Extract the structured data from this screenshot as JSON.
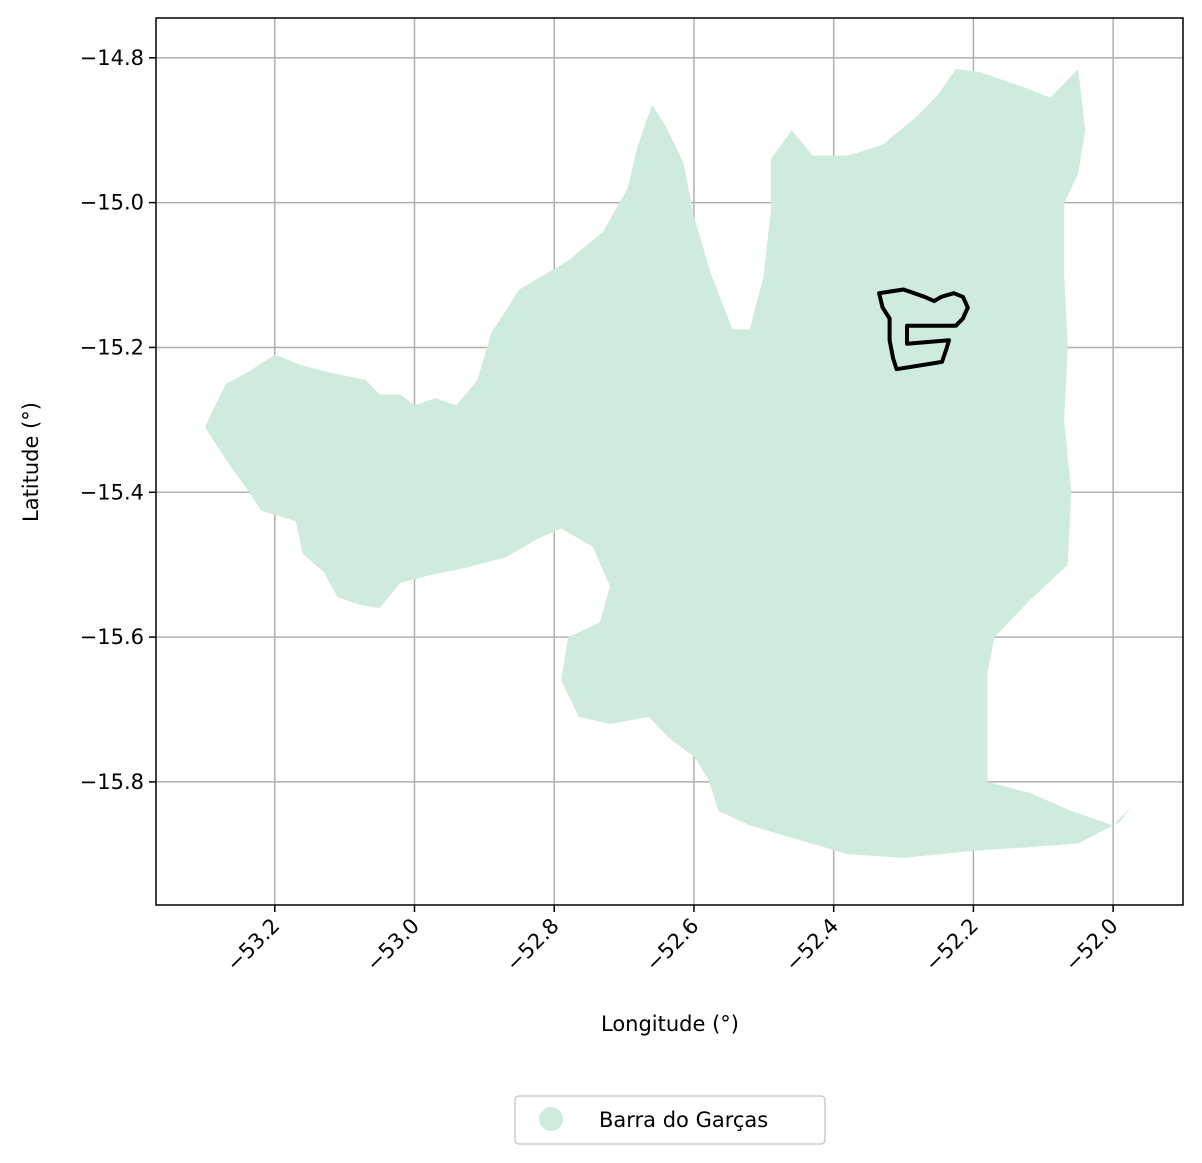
{
  "chart_data": {
    "type": "map",
    "xlabel": "Longitude (°)",
    "ylabel": "Latitude (°)",
    "xlim": [
      -53.37,
      -51.9
    ],
    "ylim": [
      -15.97,
      -14.745
    ],
    "xticks": [
      -53.2,
      -53.0,
      -52.8,
      -52.6,
      -52.4,
      -52.2,
      -52.0
    ],
    "yticks": [
      -14.8,
      -15.0,
      -15.2,
      -15.4,
      -15.6,
      -15.8
    ],
    "xtick_labels": [
      "−53.2",
      "−53.0",
      "−52.8",
      "−52.6",
      "−52.4",
      "−52.2",
      "−52.0"
    ],
    "ytick_labels": [
      "−14.8",
      "−15.0",
      "−15.2",
      "−15.4",
      "−15.6",
      "−15.8"
    ],
    "grid": true,
    "legend_position": "bottom-center",
    "legend": [
      {
        "label": "Barra do Garças",
        "color": "#cfebde"
      }
    ],
    "region_fill": "#cfebde",
    "outline_color": "#000000",
    "municipality": {
      "name": "Barra do Garças",
      "boundary": [
        [
          -53.3,
          -15.31
        ],
        [
          -53.29,
          -15.29
        ],
        [
          -53.27,
          -15.25
        ],
        [
          -53.24,
          -15.235
        ],
        [
          -53.2,
          -15.21
        ],
        [
          -53.16,
          -15.225
        ],
        [
          -53.12,
          -15.235
        ],
        [
          -53.07,
          -15.245
        ],
        [
          -53.05,
          -15.265
        ],
        [
          -53.02,
          -15.265
        ],
        [
          -53.0,
          -15.28
        ],
        [
          -52.97,
          -15.27
        ],
        [
          -52.94,
          -15.28
        ],
        [
          -52.91,
          -15.245
        ],
        [
          -52.89,
          -15.18
        ],
        [
          -52.85,
          -15.12
        ],
        [
          -52.78,
          -15.08
        ],
        [
          -52.73,
          -15.04
        ],
        [
          -52.695,
          -14.98
        ],
        [
          -52.68,
          -14.92
        ],
        [
          -52.66,
          -14.865
        ],
        [
          -52.64,
          -14.895
        ],
        [
          -52.615,
          -14.945
        ],
        [
          -52.6,
          -15.02
        ],
        [
          -52.575,
          -15.1
        ],
        [
          -52.545,
          -15.175
        ],
        [
          -52.52,
          -15.175
        ],
        [
          -52.5,
          -15.1
        ],
        [
          -52.49,
          -15.01
        ],
        [
          -52.49,
          -14.94
        ],
        [
          -52.46,
          -14.9
        ],
        [
          -52.43,
          -14.935
        ],
        [
          -52.38,
          -14.935
        ],
        [
          -52.33,
          -14.92
        ],
        [
          -52.28,
          -14.88
        ],
        [
          -52.25,
          -14.85
        ],
        [
          -52.225,
          -14.815
        ],
        [
          -52.19,
          -14.82
        ],
        [
          -52.13,
          -14.84
        ],
        [
          -52.09,
          -14.855
        ],
        [
          -52.05,
          -14.815
        ],
        [
          -52.04,
          -14.9
        ],
        [
          -52.05,
          -14.96
        ],
        [
          -52.07,
          -15.0
        ],
        [
          -52.07,
          -15.1
        ],
        [
          -52.065,
          -15.2
        ],
        [
          -52.07,
          -15.3
        ],
        [
          -52.06,
          -15.4
        ],
        [
          -52.065,
          -15.5
        ],
        [
          -52.12,
          -15.55
        ],
        [
          -52.17,
          -15.6
        ],
        [
          -52.18,
          -15.65
        ],
        [
          -52.18,
          -15.72
        ],
        [
          -52.18,
          -15.8
        ],
        [
          -52.12,
          -15.815
        ],
        [
          -52.06,
          -15.84
        ],
        [
          -52.0,
          -15.86
        ],
        [
          -51.975,
          -15.835
        ],
        [
          -51.99,
          -15.855
        ],
        [
          -52.05,
          -15.885
        ],
        [
          -52.12,
          -15.89
        ],
        [
          -52.2,
          -15.895
        ],
        [
          -52.3,
          -15.905
        ],
        [
          -52.38,
          -15.9
        ],
        [
          -52.45,
          -15.88
        ],
        [
          -52.52,
          -15.86
        ],
        [
          -52.565,
          -15.84
        ],
        [
          -52.58,
          -15.795
        ],
        [
          -52.6,
          -15.765
        ],
        [
          -52.635,
          -15.74
        ],
        [
          -52.665,
          -15.71
        ],
        [
          -52.72,
          -15.72
        ],
        [
          -52.765,
          -15.71
        ],
        [
          -52.79,
          -15.66
        ],
        [
          -52.78,
          -15.6
        ],
        [
          -52.735,
          -15.58
        ],
        [
          -52.72,
          -15.53
        ],
        [
          -52.745,
          -15.475
        ],
        [
          -52.79,
          -15.45
        ],
        [
          -52.825,
          -15.465
        ],
        [
          -52.87,
          -15.49
        ],
        [
          -52.93,
          -15.505
        ],
        [
          -52.98,
          -15.515
        ],
        [
          -53.02,
          -15.525
        ],
        [
          -53.05,
          -15.56
        ],
        [
          -53.08,
          -15.555
        ],
        [
          -53.11,
          -15.545
        ],
        [
          -53.13,
          -15.51
        ],
        [
          -53.16,
          -15.485
        ],
        [
          -53.17,
          -15.44
        ],
        [
          -53.22,
          -15.425
        ],
        [
          -53.24,
          -15.395
        ],
        [
          -53.27,
          -15.355
        ],
        [
          -53.29,
          -15.325
        ],
        [
          -53.3,
          -15.31
        ]
      ]
    },
    "focus_area": {
      "boundary": [
        [
          -52.335,
          -15.125
        ],
        [
          -52.3,
          -15.12
        ],
        [
          -52.27,
          -15.13
        ],
        [
          -52.256,
          -15.136
        ],
        [
          -52.246,
          -15.13
        ],
        [
          -52.228,
          -15.125
        ],
        [
          -52.215,
          -15.13
        ],
        [
          -52.208,
          -15.145
        ],
        [
          -52.215,
          -15.16
        ],
        [
          -52.225,
          -15.17
        ],
        [
          -52.295,
          -15.17
        ],
        [
          -52.295,
          -15.195
        ],
        [
          -52.235,
          -15.19
        ],
        [
          -52.238,
          -15.2
        ],
        [
          -52.245,
          -15.22
        ],
        [
          -52.31,
          -15.23
        ],
        [
          -52.315,
          -15.215
        ],
        [
          -52.32,
          -15.19
        ],
        [
          -52.32,
          -15.16
        ],
        [
          -52.33,
          -15.145
        ],
        [
          -52.335,
          -15.125
        ]
      ]
    }
  }
}
